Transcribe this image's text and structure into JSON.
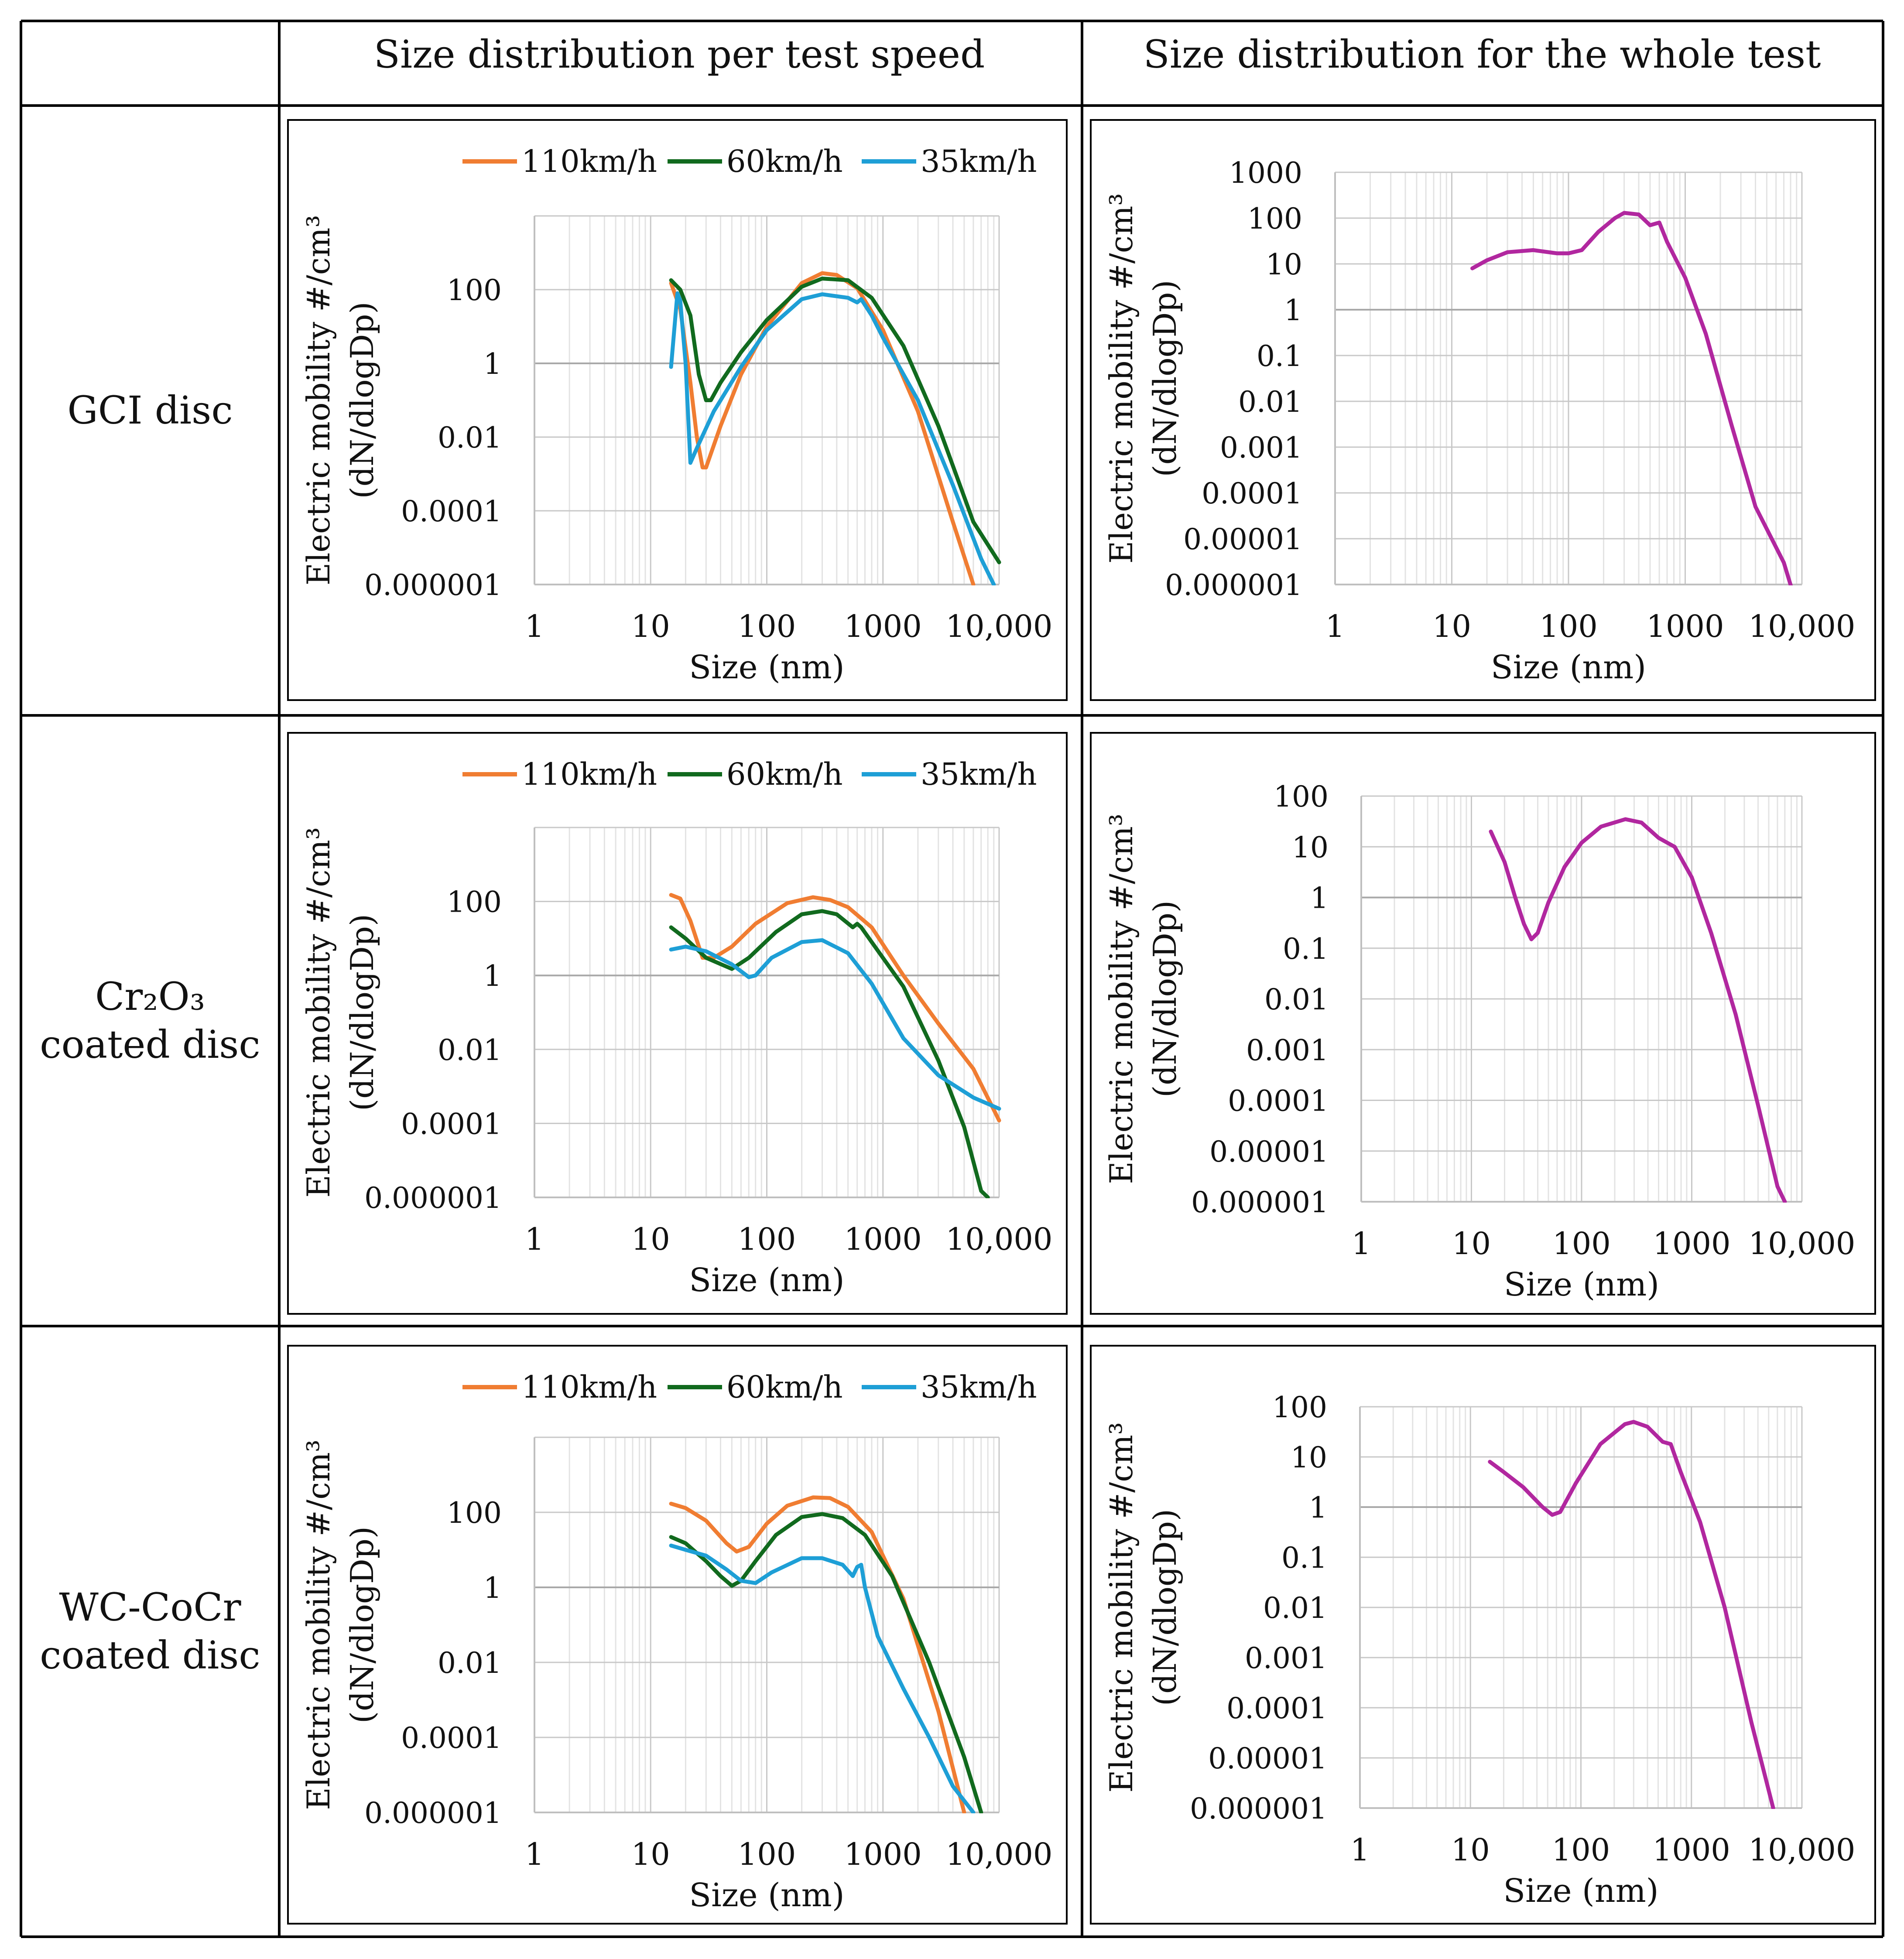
{
  "table": {
    "header_col1": "Size distribution per test speed",
    "header_col2": "Size distribution for the whole test",
    "rows": [
      {
        "label_lines": [
          "GCI disc"
        ]
      },
      {
        "label_lines": [
          "Cr₂O₃",
          "coated disc"
        ]
      },
      {
        "label_lines": [
          "WC-CoCr",
          "coated disc"
        ]
      }
    ]
  },
  "colors": {
    "s110": "#F07D32",
    "s60": "#116A1E",
    "s35": "#1E9FD6",
    "whole": "#B1279F",
    "grid_minor": "#E3E3E3",
    "grid_major": "#C8C8C8",
    "axis": "#BFBFBF",
    "frame": "#000000"
  },
  "axis_text": {
    "ylabel_line1": "Electric mobility #/cm³",
    "ylabel_line2": "(dN/dlogDp)",
    "xlabel": "Size (nm)",
    "xticks": [
      "1",
      "10",
      "100",
      "1000",
      "10,000"
    ]
  },
  "chart_data": [
    {
      "type": "line",
      "row": 0,
      "col": 0,
      "x_scale": "log",
      "y_scale": "log",
      "xlim": [
        1,
        10000
      ],
      "ylim": [
        1e-06,
        10000
      ],
      "yticks": [
        "0.000001",
        "0.0001",
        "0.01",
        "1",
        "100"
      ],
      "ytick_values": [
        1e-06,
        0.0001,
        0.01,
        1,
        100
      ],
      "legend": "top",
      "xlabel": "Size (nm)",
      "ylabel": "Electric mobility #/cm³ (dN/dlogDp)",
      "series": [
        {
          "name": "110km/h",
          "color_key": "s110",
          "points": [
            [
              15,
              150
            ],
            [
              18,
              30
            ],
            [
              22,
              0.3
            ],
            [
              25,
              0.01
            ],
            [
              28,
              0.0015
            ],
            [
              30,
              0.0015
            ],
            [
              40,
              0.02
            ],
            [
              60,
              0.5
            ],
            [
              100,
              10
            ],
            [
              200,
              150
            ],
            [
              300,
              280
            ],
            [
              400,
              250
            ],
            [
              600,
              110
            ],
            [
              1000,
              8
            ],
            [
              2000,
              0.05
            ],
            [
              4000,
              5e-05
            ],
            [
              6000,
              1e-06
            ]
          ]
        },
        {
          "name": "60km/h",
          "color_key": "s60",
          "points": [
            [
              15,
              180
            ],
            [
              18,
              100
            ],
            [
              22,
              20
            ],
            [
              26,
              0.5
            ],
            [
              30,
              0.1
            ],
            [
              33,
              0.1
            ],
            [
              40,
              0.3
            ],
            [
              60,
              2
            ],
            [
              100,
              15
            ],
            [
              200,
              120
            ],
            [
              300,
              200
            ],
            [
              500,
              180
            ],
            [
              800,
              60
            ],
            [
              1500,
              3
            ],
            [
              3000,
              0.02
            ],
            [
              6000,
              5e-05
            ],
            [
              10000,
              4e-06
            ]
          ]
        },
        {
          "name": "35km/h",
          "color_key": "s35",
          "points": [
            [
              15,
              0.8
            ],
            [
              17,
              80
            ],
            [
              18,
              50
            ],
            [
              20,
              1
            ],
            [
              22,
              0.002
            ],
            [
              25,
              0.005
            ],
            [
              35,
              0.05
            ],
            [
              60,
              0.8
            ],
            [
              100,
              8
            ],
            [
              200,
              55
            ],
            [
              300,
              75
            ],
            [
              500,
              60
            ],
            [
              600,
              45
            ],
            [
              650,
              55
            ],
            [
              800,
              20
            ],
            [
              1000,
              5
            ],
            [
              2000,
              0.1
            ],
            [
              4000,
              0.0005
            ],
            [
              7000,
              5e-06
            ],
            [
              9000,
              1e-06
            ]
          ]
        }
      ]
    },
    {
      "type": "line",
      "row": 0,
      "col": 1,
      "x_scale": "log",
      "y_scale": "log",
      "xlim": [
        1,
        10000
      ],
      "ylim": [
        1e-06,
        1000
      ],
      "yticks": [
        "0.000001",
        "0.00001",
        "0.0001",
        "0.001",
        "0.01",
        "0.1",
        "1",
        "10",
        "100",
        "1000"
      ],
      "ytick_values": [
        1e-06,
        1e-05,
        0.0001,
        0.001,
        0.01,
        0.1,
        1,
        10,
        100,
        1000
      ],
      "xlabel": "Size (nm)",
      "ylabel": "Electric mobility #/cm³ (dN/dlogDp)",
      "series": [
        {
          "name": "",
          "color_key": "whole",
          "points": [
            [
              15,
              8
            ],
            [
              20,
              12
            ],
            [
              30,
              18
            ],
            [
              50,
              20
            ],
            [
              80,
              17
            ],
            [
              100,
              17
            ],
            [
              130,
              20
            ],
            [
              180,
              50
            ],
            [
              250,
              100
            ],
            [
              300,
              130
            ],
            [
              400,
              120
            ],
            [
              500,
              70
            ],
            [
              600,
              80
            ],
            [
              700,
              30
            ],
            [
              1000,
              5
            ],
            [
              1500,
              0.3
            ],
            [
              2500,
              0.003
            ],
            [
              4000,
              5e-05
            ],
            [
              7000,
              3e-06
            ],
            [
              10000,
              1.5e-07
            ]
          ]
        }
      ]
    },
    {
      "type": "line",
      "row": 1,
      "col": 0,
      "x_scale": "log",
      "y_scale": "log",
      "xlim": [
        1,
        10000
      ],
      "ylim": [
        1e-06,
        10000
      ],
      "yticks": [
        "0.000001",
        "0.0001",
        "0.01",
        "1",
        "100"
      ],
      "ytick_values": [
        1e-06,
        0.0001,
        0.01,
        1,
        100
      ],
      "legend": "top",
      "xlabel": "Size (nm)",
      "ylabel": "Electric mobility #/cm³ (dN/dlogDp)",
      "series": [
        {
          "name": "110km/h",
          "color_key": "s110",
          "points": [
            [
              15,
              150
            ],
            [
              18,
              120
            ],
            [
              22,
              30
            ],
            [
              28,
              3
            ],
            [
              35,
              3
            ],
            [
              50,
              6
            ],
            [
              80,
              25
            ],
            [
              150,
              90
            ],
            [
              250,
              130
            ],
            [
              350,
              110
            ],
            [
              500,
              70
            ],
            [
              800,
              20
            ],
            [
              1500,
              1
            ],
            [
              3000,
              0.05
            ],
            [
              6000,
              0.003
            ],
            [
              10000,
              0.00012
            ]
          ]
        },
        {
          "name": "60km/h",
          "color_key": "s60",
          "points": [
            [
              15,
              20
            ],
            [
              20,
              10
            ],
            [
              30,
              3
            ],
            [
              50,
              1.5
            ],
            [
              70,
              3
            ],
            [
              120,
              15
            ],
            [
              200,
              45
            ],
            [
              300,
              55
            ],
            [
              400,
              45
            ],
            [
              550,
              20
            ],
            [
              600,
              25
            ],
            [
              650,
              20
            ],
            [
              800,
              8
            ],
            [
              1500,
              0.5
            ],
            [
              3000,
              0.005
            ],
            [
              5000,
              8e-05
            ],
            [
              7000,
              1.5e-06
            ],
            [
              8000,
              1e-06
            ]
          ]
        },
        {
          "name": "35km/h",
          "color_key": "s35",
          "points": [
            [
              15,
              5
            ],
            [
              20,
              6
            ],
            [
              30,
              4.5
            ],
            [
              50,
              2
            ],
            [
              70,
              0.9
            ],
            [
              80,
              1
            ],
            [
              110,
              3
            ],
            [
              200,
              8
            ],
            [
              300,
              9
            ],
            [
              500,
              4
            ],
            [
              800,
              0.6
            ],
            [
              1500,
              0.02
            ],
            [
              3000,
              0.002
            ],
            [
              6000,
              0.0005
            ],
            [
              10000,
              0.00025
            ]
          ]
        }
      ]
    },
    {
      "type": "line",
      "row": 1,
      "col": 1,
      "x_scale": "log",
      "y_scale": "log",
      "xlim": [
        1,
        10000
      ],
      "ylim": [
        1e-06,
        100
      ],
      "yticks": [
        "0.000001",
        "0.00001",
        "0.0001",
        "0.001",
        "0.01",
        "0.1",
        "1",
        "10",
        "100"
      ],
      "ytick_values": [
        1e-06,
        1e-05,
        0.0001,
        0.001,
        0.01,
        0.1,
        1,
        10,
        100
      ],
      "xlabel": "Size (nm)",
      "ylabel": "Electric mobility #/cm³ (dN/dlogDp)",
      "series": [
        {
          "name": "",
          "color_key": "whole",
          "points": [
            [
              15,
              20
            ],
            [
              20,
              5
            ],
            [
              25,
              1
            ],
            [
              30,
              0.3
            ],
            [
              35,
              0.15
            ],
            [
              40,
              0.2
            ],
            [
              50,
              0.8
            ],
            [
              70,
              4
            ],
            [
              100,
              12
            ],
            [
              150,
              25
            ],
            [
              250,
              35
            ],
            [
              350,
              30
            ],
            [
              500,
              15
            ],
            [
              600,
              12
            ],
            [
              700,
              10
            ],
            [
              1000,
              2.5
            ],
            [
              1500,
              0.2
            ],
            [
              2500,
              0.005
            ],
            [
              4000,
              8e-05
            ],
            [
              6000,
              2e-06
            ],
            [
              7000,
              1e-06
            ]
          ]
        }
      ]
    },
    {
      "type": "line",
      "row": 2,
      "col": 0,
      "x_scale": "log",
      "y_scale": "log",
      "xlim": [
        1,
        10000
      ],
      "ylim": [
        1e-06,
        10000
      ],
      "yticks": [
        "0.000001",
        "0.0001",
        "0.01",
        "1",
        "100"
      ],
      "ytick_values": [
        1e-06,
        0.0001,
        0.01,
        1,
        100
      ],
      "legend": "top",
      "xlabel": "Size (nm)",
      "ylabel": "Electric mobility #/cm³ (dN/dlogDp)",
      "series": [
        {
          "name": "110km/h",
          "color_key": "s110",
          "points": [
            [
              15,
              170
            ],
            [
              20,
              130
            ],
            [
              30,
              60
            ],
            [
              45,
              15
            ],
            [
              55,
              9
            ],
            [
              70,
              12
            ],
            [
              100,
              50
            ],
            [
              150,
              150
            ],
            [
              250,
              250
            ],
            [
              350,
              240
            ],
            [
              500,
              140
            ],
            [
              800,
              30
            ],
            [
              1500,
              0.5
            ],
            [
              3000,
              0.0005
            ],
            [
              5000,
              1e-06
            ]
          ]
        },
        {
          "name": "60km/h",
          "color_key": "s60",
          "points": [
            [
              15,
              22
            ],
            [
              20,
              15
            ],
            [
              30,
              5
            ],
            [
              40,
              2
            ],
            [
              50,
              1.1
            ],
            [
              60,
              1.5
            ],
            [
              80,
              5
            ],
            [
              120,
              25
            ],
            [
              200,
              75
            ],
            [
              300,
              90
            ],
            [
              450,
              70
            ],
            [
              700,
              25
            ],
            [
              1200,
              2
            ],
            [
              2500,
              0.01
            ],
            [
              5000,
              3e-05
            ],
            [
              7000,
              1e-06
            ]
          ]
        },
        {
          "name": "35km/h",
          "color_key": "s35",
          "points": [
            [
              15,
              13
            ],
            [
              20,
              10
            ],
            [
              30,
              7
            ],
            [
              45,
              3
            ],
            [
              60,
              1.5
            ],
            [
              80,
              1.3
            ],
            [
              110,
              2.5
            ],
            [
              200,
              6
            ],
            [
              300,
              6
            ],
            [
              450,
              4
            ],
            [
              550,
              2
            ],
            [
              600,
              3.5
            ],
            [
              650,
              4
            ],
            [
              700,
              1
            ],
            [
              900,
              0.05
            ],
            [
              1500,
              0.002
            ],
            [
              2500,
              0.0001
            ],
            [
              4000,
              5e-06
            ],
            [
              6000,
              1e-06
            ]
          ]
        }
      ]
    },
    {
      "type": "line",
      "row": 2,
      "col": 1,
      "x_scale": "log",
      "y_scale": "log",
      "xlim": [
        1,
        10000
      ],
      "ylim": [
        1e-06,
        100
      ],
      "yticks": [
        "0.000001",
        "0.00001",
        "0.0001",
        "0.001",
        "0.01",
        "0.1",
        "1",
        "10",
        "100"
      ],
      "ytick_values": [
        1e-06,
        1e-05,
        0.0001,
        0.001,
        0.01,
        0.1,
        1,
        10,
        100
      ],
      "xlabel": "Size (nm)",
      "ylabel": "Electric mobility #/cm³ (dN/dlogDp)",
      "series": [
        {
          "name": "",
          "color_key": "whole",
          "points": [
            [
              15,
              8
            ],
            [
              20,
              5
            ],
            [
              30,
              2.5
            ],
            [
              45,
              1
            ],
            [
              55,
              0.7
            ],
            [
              65,
              0.8
            ],
            [
              90,
              3
            ],
            [
              150,
              18
            ],
            [
              250,
              45
            ],
            [
              300,
              50
            ],
            [
              400,
              40
            ],
            [
              550,
              20
            ],
            [
              650,
              18
            ],
            [
              800,
              5
            ],
            [
              1200,
              0.5
            ],
            [
              2000,
              0.01
            ],
            [
              3500,
              5e-05
            ],
            [
              5500,
              1e-06
            ]
          ]
        }
      ]
    }
  ]
}
